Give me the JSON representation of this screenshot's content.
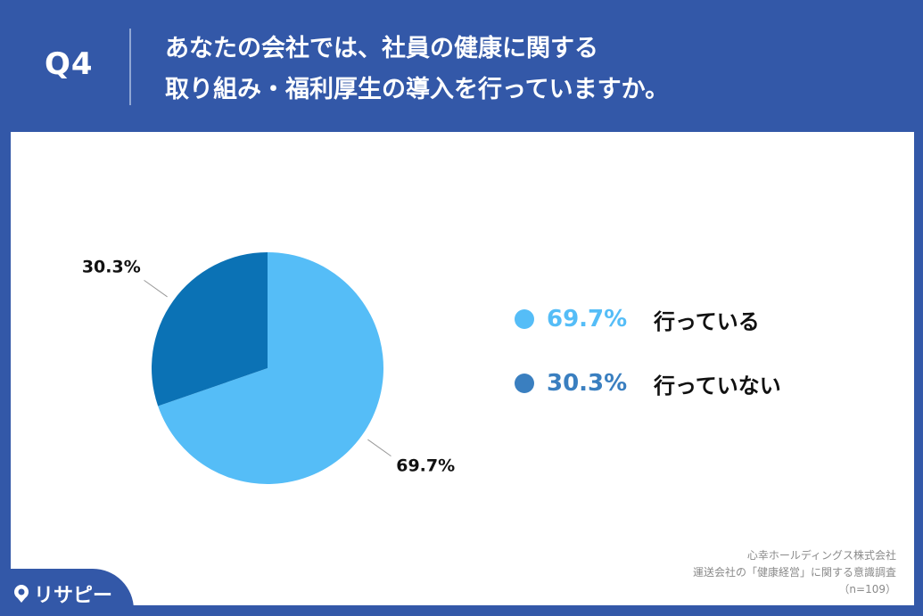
{
  "header": {
    "question_number": "Q4",
    "question_line1": "あなたの会社では、社員の健康に関する",
    "question_line2": "取り組み・福利厚生の導入を行っていますか。"
  },
  "chart_data": {
    "type": "pie",
    "categories": [
      "行っている",
      "行っていない"
    ],
    "values": [
      69.7,
      30.3
    ],
    "value_labels": [
      "69.7%",
      "30.3%"
    ],
    "colors": [
      "#55bdf7",
      "#0b72b5"
    ],
    "legend_colors": [
      "#55bdf7",
      "#3a7fc0"
    ],
    "legend_placement": "right"
  },
  "source": {
    "line1": "心幸ホールディングス株式会社",
    "line2": "運送会社の「健康経営」に関する意識調査",
    "line3": "（n=109）"
  },
  "logo": {
    "text": "リサピー",
    "icon": "pin-icon"
  }
}
